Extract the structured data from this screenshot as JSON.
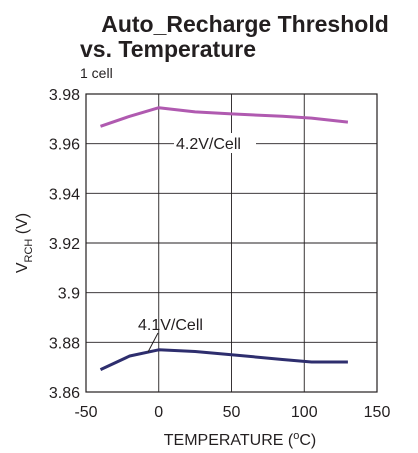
{
  "chart_data": {
    "type": "line",
    "title_line1": "Auto_Recharge Threshold",
    "title_line2": "vs. Temperature",
    "subtitle": "1 cell",
    "xlabel": "TEMPERATURE (",
    "xlabel_unit_sup": "o",
    "xlabel_unit": "C)",
    "ylabel_main": "V",
    "ylabel_sub": "RCH",
    "ylabel_unit": " (V)",
    "xlim": [
      -50,
      150
    ],
    "ylim": [
      3.86,
      3.98
    ],
    "xticks": [
      -50,
      0,
      50,
      100,
      150
    ],
    "xtick_labels": [
      "-50",
      "0",
      "50",
      "100",
      "150"
    ],
    "yticks": [
      3.86,
      3.88,
      3.9,
      3.92,
      3.94,
      3.96,
      3.98
    ],
    "ytick_labels": [
      "3.86",
      "3.88",
      "3.9",
      "3.92",
      "3.94",
      "3.96",
      "3.98"
    ],
    "grid": true,
    "series": [
      {
        "name": "4.2V/Cell",
        "color": "#b05ab0",
        "x": [
          -40,
          -20,
          0,
          25,
          50,
          85,
          105,
          130
        ],
        "y": [
          3.967,
          3.971,
          3.9745,
          3.9728,
          3.972,
          3.971,
          3.9703,
          3.9687
        ]
      },
      {
        "name": "4.1V/Cell",
        "color": "#2e2e6e",
        "x": [
          -40,
          -20,
          0,
          25,
          50,
          85,
          105,
          130
        ],
        "y": [
          3.869,
          3.8745,
          3.877,
          3.8763,
          3.875,
          3.8731,
          3.8721,
          3.8721
        ]
      }
    ]
  }
}
